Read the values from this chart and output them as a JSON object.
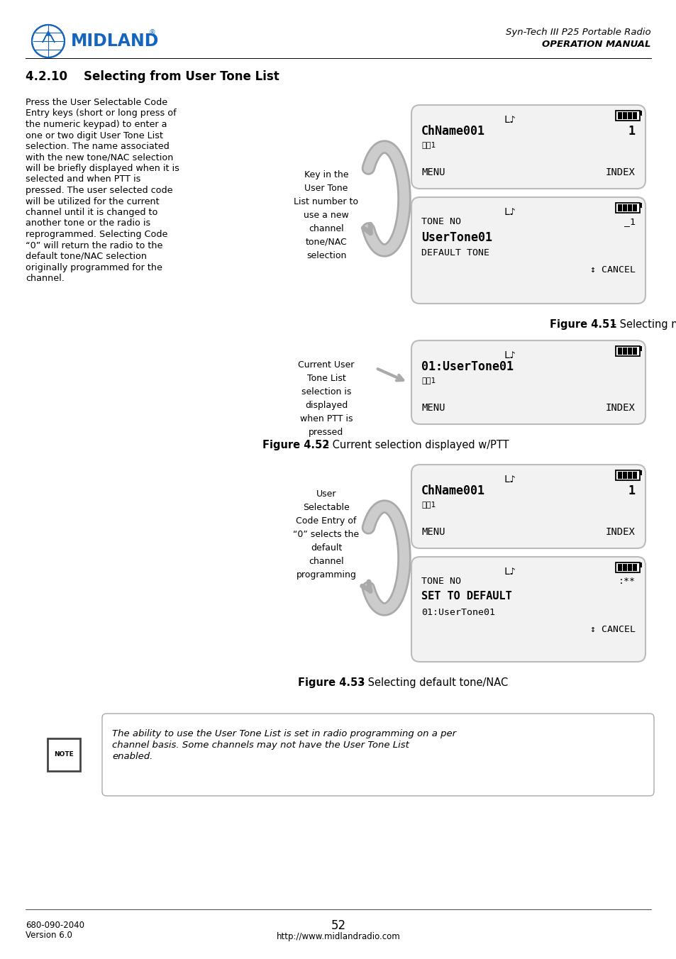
{
  "page_bg": "#ffffff",
  "header_right_line1": "Syn-Tech III P25 Portable Radio",
  "header_right_line2": "OPERATION MANUAL",
  "section_title": "4.2.10    Selecting from User Tone List",
  "body_text": "Press the User Selectable Code\nEntry keys (short or long press of\nthe numeric keypad) to enter a\none or two digit User Tone List\nselection. The name associated\nwith the new tone/NAC selection\nwill be briefly displayed when it is\nselected and when PTT is\npressed. The user selected code\nwill be utilized for the current\nchannel until it is changed to\nanother tone or the radio is\nreprogrammed. Selecting Code\n“0” will return the radio to the\ndefault tone/NAC selection\noriginally programmed for the\nchannel.",
  "fig51_caption_bold": "Figure 4.51",
  "fig51_caption_rest": " – Selecting new user tone/NAC",
  "fig52_caption_bold": "Figure 4.52",
  "fig52_caption_rest": " – Current selection displayed w/PTT",
  "fig53_caption_bold": "Figure 4.53",
  "fig53_caption_rest": " – Selecting default tone/NAC",
  "label_fig51": "Key in the\nUser Tone\nList number to\nuse a new\nchannel\ntone/NAC\nselection",
  "label_fig52": "Current User\nTone List\nselection is\ndisplayed\nwhen PTT is\npressed",
  "label_fig53": "User\nSelectable\nCode Entry of\n“0” selects the\ndefault\nchannel\nprogramming",
  "note_text_italic": "The ability to use the User Tone List is set in radio programming on a per\nchannel basis. Some channels may not have the User Tone List\nenabled.",
  "footer_left_line1": "680-090-2040",
  "footer_left_line2": "Version 6.0",
  "footer_center": "52",
  "footer_url": "http://www.midlandradio.com"
}
